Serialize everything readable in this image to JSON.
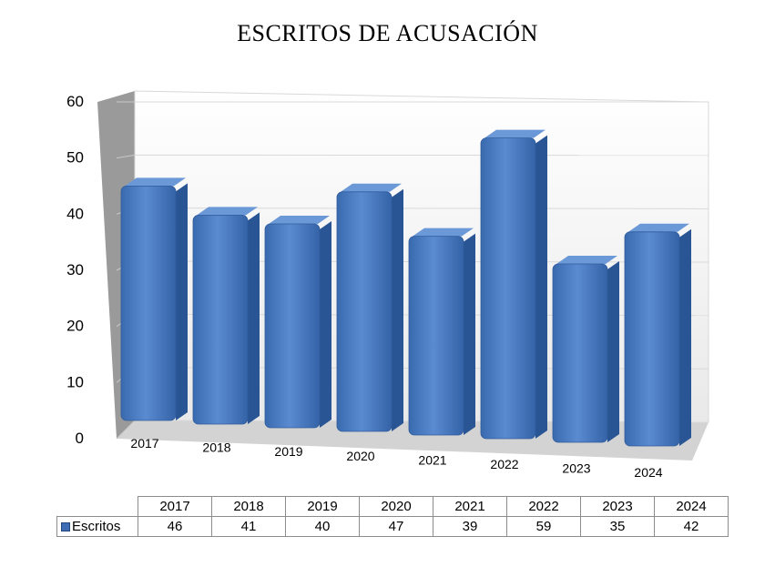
{
  "chart_data": {
    "type": "bar",
    "title": "ESCRITOS DE ACUSACIÓN",
    "categories": [
      "2017",
      "2018",
      "2019",
      "2020",
      "2021",
      "2022",
      "2023",
      "2024"
    ],
    "series": [
      {
        "name": "Escritos",
        "values": [
          46,
          41,
          40,
          47,
          39,
          59,
          35,
          42
        ]
      }
    ],
    "y_ticks": [
      "0",
      "10",
      "20",
      "30",
      "40",
      "50",
      "60"
    ],
    "ylim": [
      0,
      60
    ],
    "grid": true,
    "legend": "data-table",
    "colors": {
      "bar": "#4a7cc2",
      "bar_dark": "#2a5595",
      "bar_top": "#6b98d6"
    }
  }
}
